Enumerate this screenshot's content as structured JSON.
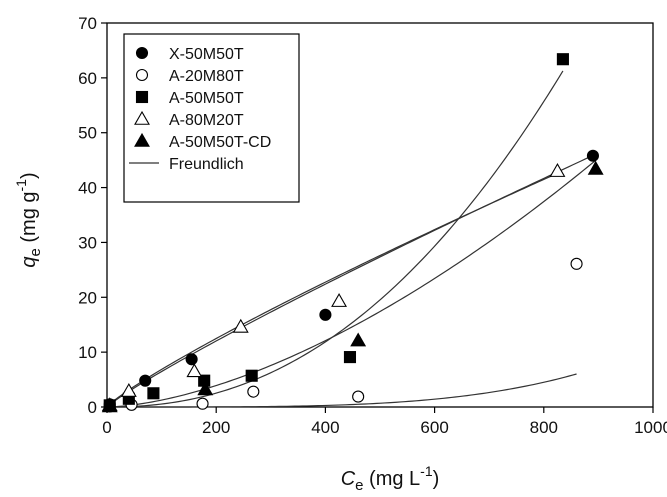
{
  "chart_data": {
    "type": "scatter",
    "xlim": [
      0,
      1000
    ],
    "ylim": [
      0,
      70
    ],
    "xticks": [
      "0",
      "200",
      "400",
      "600",
      "800",
      "1000"
    ],
    "yticks": [
      "0",
      "10",
      "20",
      "30",
      "40",
      "50",
      "60",
      "70"
    ],
    "xlabel": {
      "main": "C",
      "sub": "e",
      "unit": " (mg L",
      "exp": "-1",
      "close": ")"
    },
    "ylabel": {
      "main": "q",
      "sub": "e",
      "unit": " (mg g",
      "exp": "-1",
      "close": ")"
    },
    "legend_position": "top-left",
    "series": [
      {
        "name": "X-50M50T",
        "marker": "circle-filled",
        "points": [
          [
            5,
            0.5
          ],
          [
            70,
            4.8
          ],
          [
            155,
            8.7
          ],
          [
            400,
            16.8
          ],
          [
            890,
            45.8
          ]
        ],
        "fit": {
          "K": 0.1044,
          "n": 0.896
        }
      },
      {
        "name": "A-20M80T",
        "marker": "circle-open",
        "points": [
          [
            5,
            0.1
          ],
          [
            45,
            0.4
          ],
          [
            175,
            0.6
          ],
          [
            268,
            2.8
          ],
          [
            460,
            1.9
          ],
          [
            860,
            26.1
          ]
        ],
        "fit": {
          "K": 1.1e-11,
          "n": 4.0
        }
      },
      {
        "name": "A-50M50T",
        "marker": "square-filled",
        "points": [
          [
            5,
            0.3
          ],
          [
            40,
            1.5
          ],
          [
            85,
            2.5
          ],
          [
            178,
            4.8
          ],
          [
            265,
            5.7
          ],
          [
            445,
            9.1
          ],
          [
            835,
            63.4
          ]
        ],
        "fit": {
          "K": 1.87e-05,
          "n": 2.23
        }
      },
      {
        "name": "A-80M20T",
        "marker": "triangle-open",
        "points": [
          [
            5,
            0.3
          ],
          [
            40,
            2.9
          ],
          [
            160,
            6.5
          ],
          [
            245,
            14.6
          ],
          [
            425,
            19.3
          ],
          [
            825,
            43.0
          ]
        ],
        "fit": {
          "K": 0.127,
          "n": 0.866
        }
      },
      {
        "name": "A-50M50T-CD",
        "marker": "triangle-filled",
        "points": [
          [
            5,
            0.1
          ],
          [
            180,
            3.2
          ],
          [
            460,
            12.1
          ],
          [
            895,
            43.4
          ]
        ],
        "fit": {
          "K": 0.000694,
          "n": 1.63
        }
      }
    ],
    "fit_legend": "Freundlich",
    "colors": {
      "marker": "#000000",
      "fit_line": "#333333"
    }
  }
}
